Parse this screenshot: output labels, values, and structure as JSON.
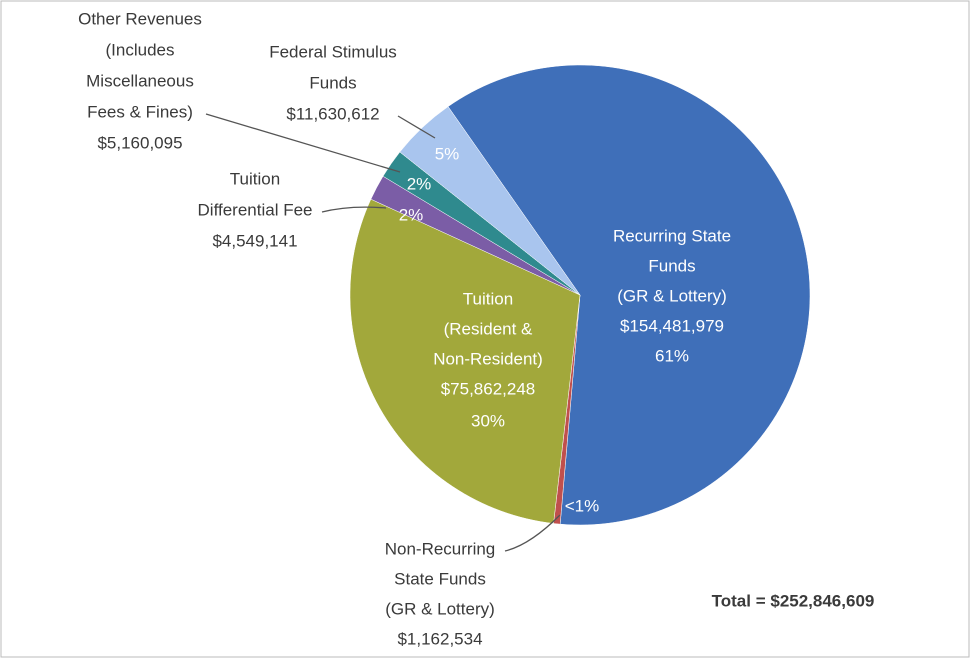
{
  "chart_data": {
    "type": "pie",
    "categories": [
      [
        "Recurring State",
        "Funds",
        "(GR & Lottery)"
      ],
      [
        "Non-Recurring",
        "State Funds",
        "(GR & Lottery)"
      ],
      [
        "Tuition",
        "(Resident &",
        "Non-Resident)"
      ],
      [
        "Tuition",
        "Differential Fee"
      ],
      [
        "Other Revenues",
        "(Includes",
        "Miscellaneous",
        "Fees & Fines)"
      ],
      [
        "Federal Stimulus",
        "Funds"
      ]
    ],
    "values": [
      154481979,
      1162534,
      75862248,
      4549141,
      5160095,
      11630612
    ],
    "value_labels": [
      "$154,481,979",
      "$1,162,534",
      "$75,862,248",
      "$4,549,141",
      "$5,160,095",
      "$11,630,612"
    ],
    "percent_labels": [
      "61%",
      "<1%",
      "30%",
      "2%",
      "2%",
      "5%"
    ],
    "colors": [
      "#3f6fb9",
      "#c0504d",
      "#a2a83b",
      "#7b5da6",
      "#2f8a8e",
      "#a9c5ee"
    ],
    "annotation": "Total = $252,846,609"
  }
}
